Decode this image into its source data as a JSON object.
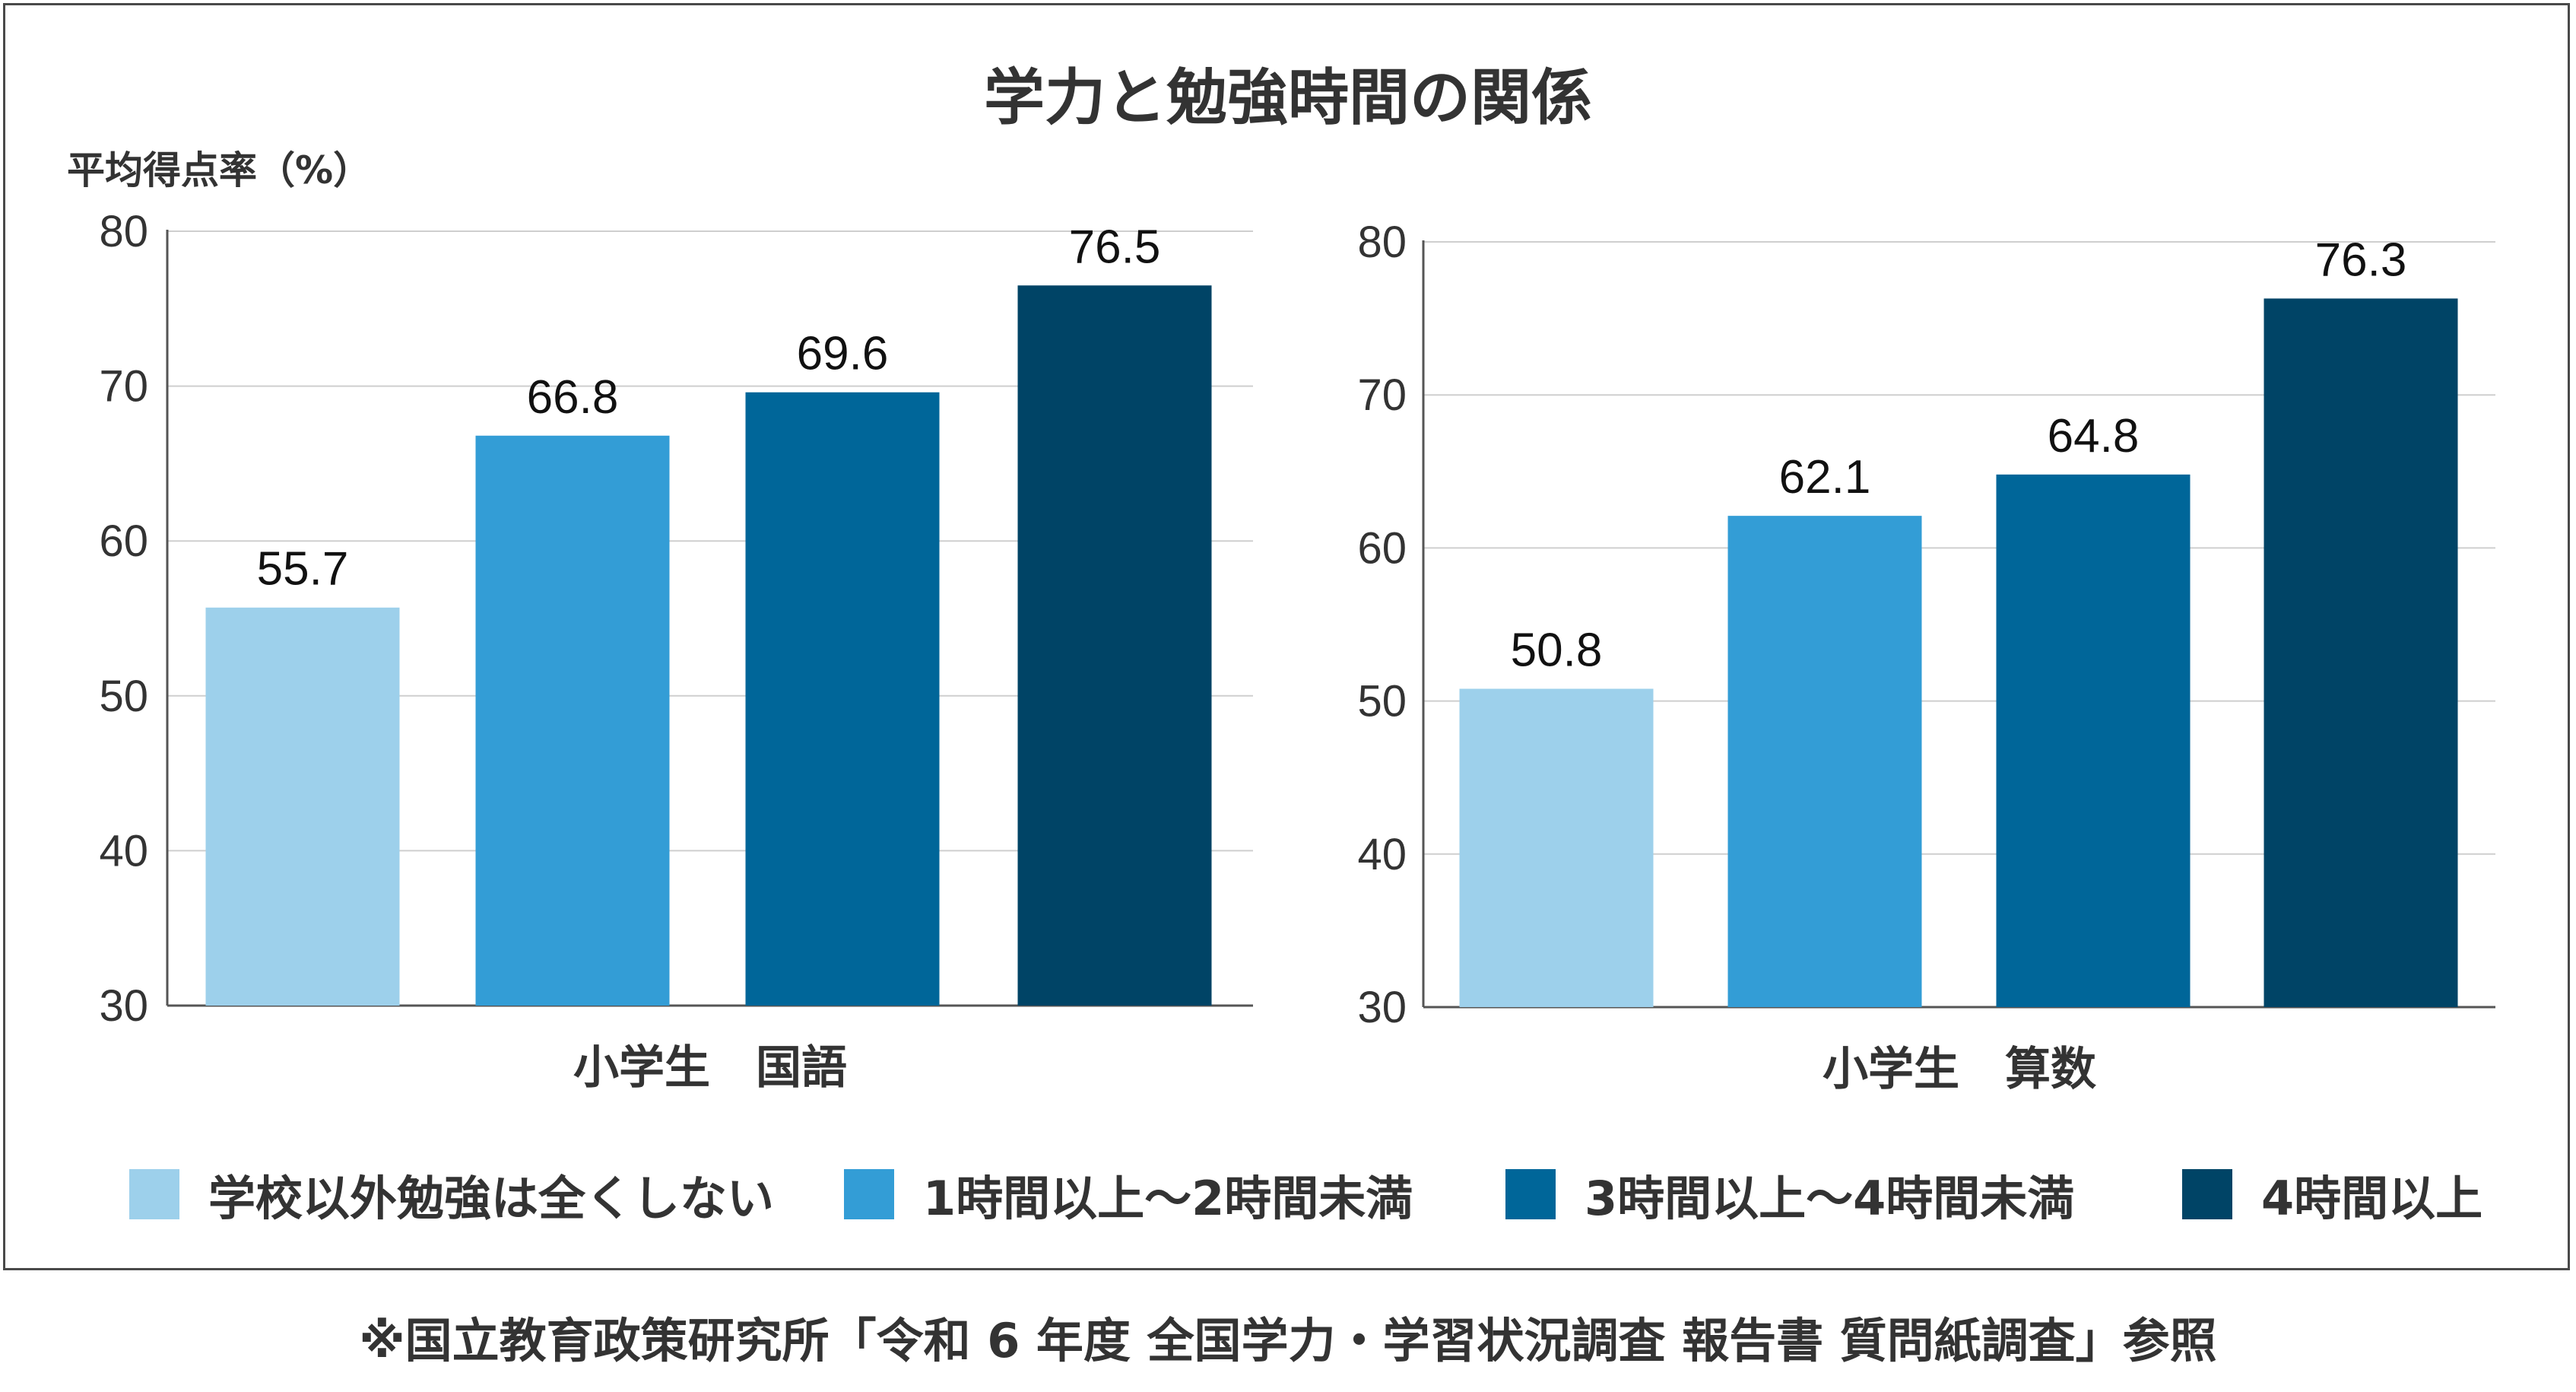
{
  "title": "学力と勉強時間の関係",
  "ylabel": "平均得点率（%）",
  "footnote": "※国立教育政策研究所「令和 6 年度 全国学力・学習状況調査 報告書 質問紙調査」参照",
  "legend": [
    {
      "label": "学校以外勉強は全くしない",
      "color": "#9dd0eb"
    },
    {
      "label": "1時間以上～2時間未満",
      "color": "#339dd6"
    },
    {
      "label": "3時間以上～4時間未満",
      "color": "#006699"
    },
    {
      "label": "4時間以上",
      "color": "#004466"
    }
  ],
  "chart_data": [
    {
      "type": "bar",
      "xlabel": "小学生　国語",
      "categories": [
        "学校以外勉強は全くしない",
        "1時間以上～2時間未満",
        "3時間以上～4時間未満",
        "4時間以上"
      ],
      "values": [
        55.7,
        66.8,
        69.6,
        76.5
      ],
      "ylim": [
        30,
        80
      ],
      "yticks": [
        30,
        40,
        50,
        60,
        70,
        80
      ],
      "grid": true
    },
    {
      "type": "bar",
      "xlabel": "小学生　算数",
      "categories": [
        "学校以外勉強は全くしない",
        "1時間以上～2時間未満",
        "3時間以上～4時間未満",
        "4時間以上"
      ],
      "values": [
        50.8,
        62.1,
        64.8,
        76.3
      ],
      "ylim": [
        30,
        80
      ],
      "yticks": [
        30,
        40,
        50,
        60,
        70,
        80
      ],
      "grid": true
    }
  ]
}
